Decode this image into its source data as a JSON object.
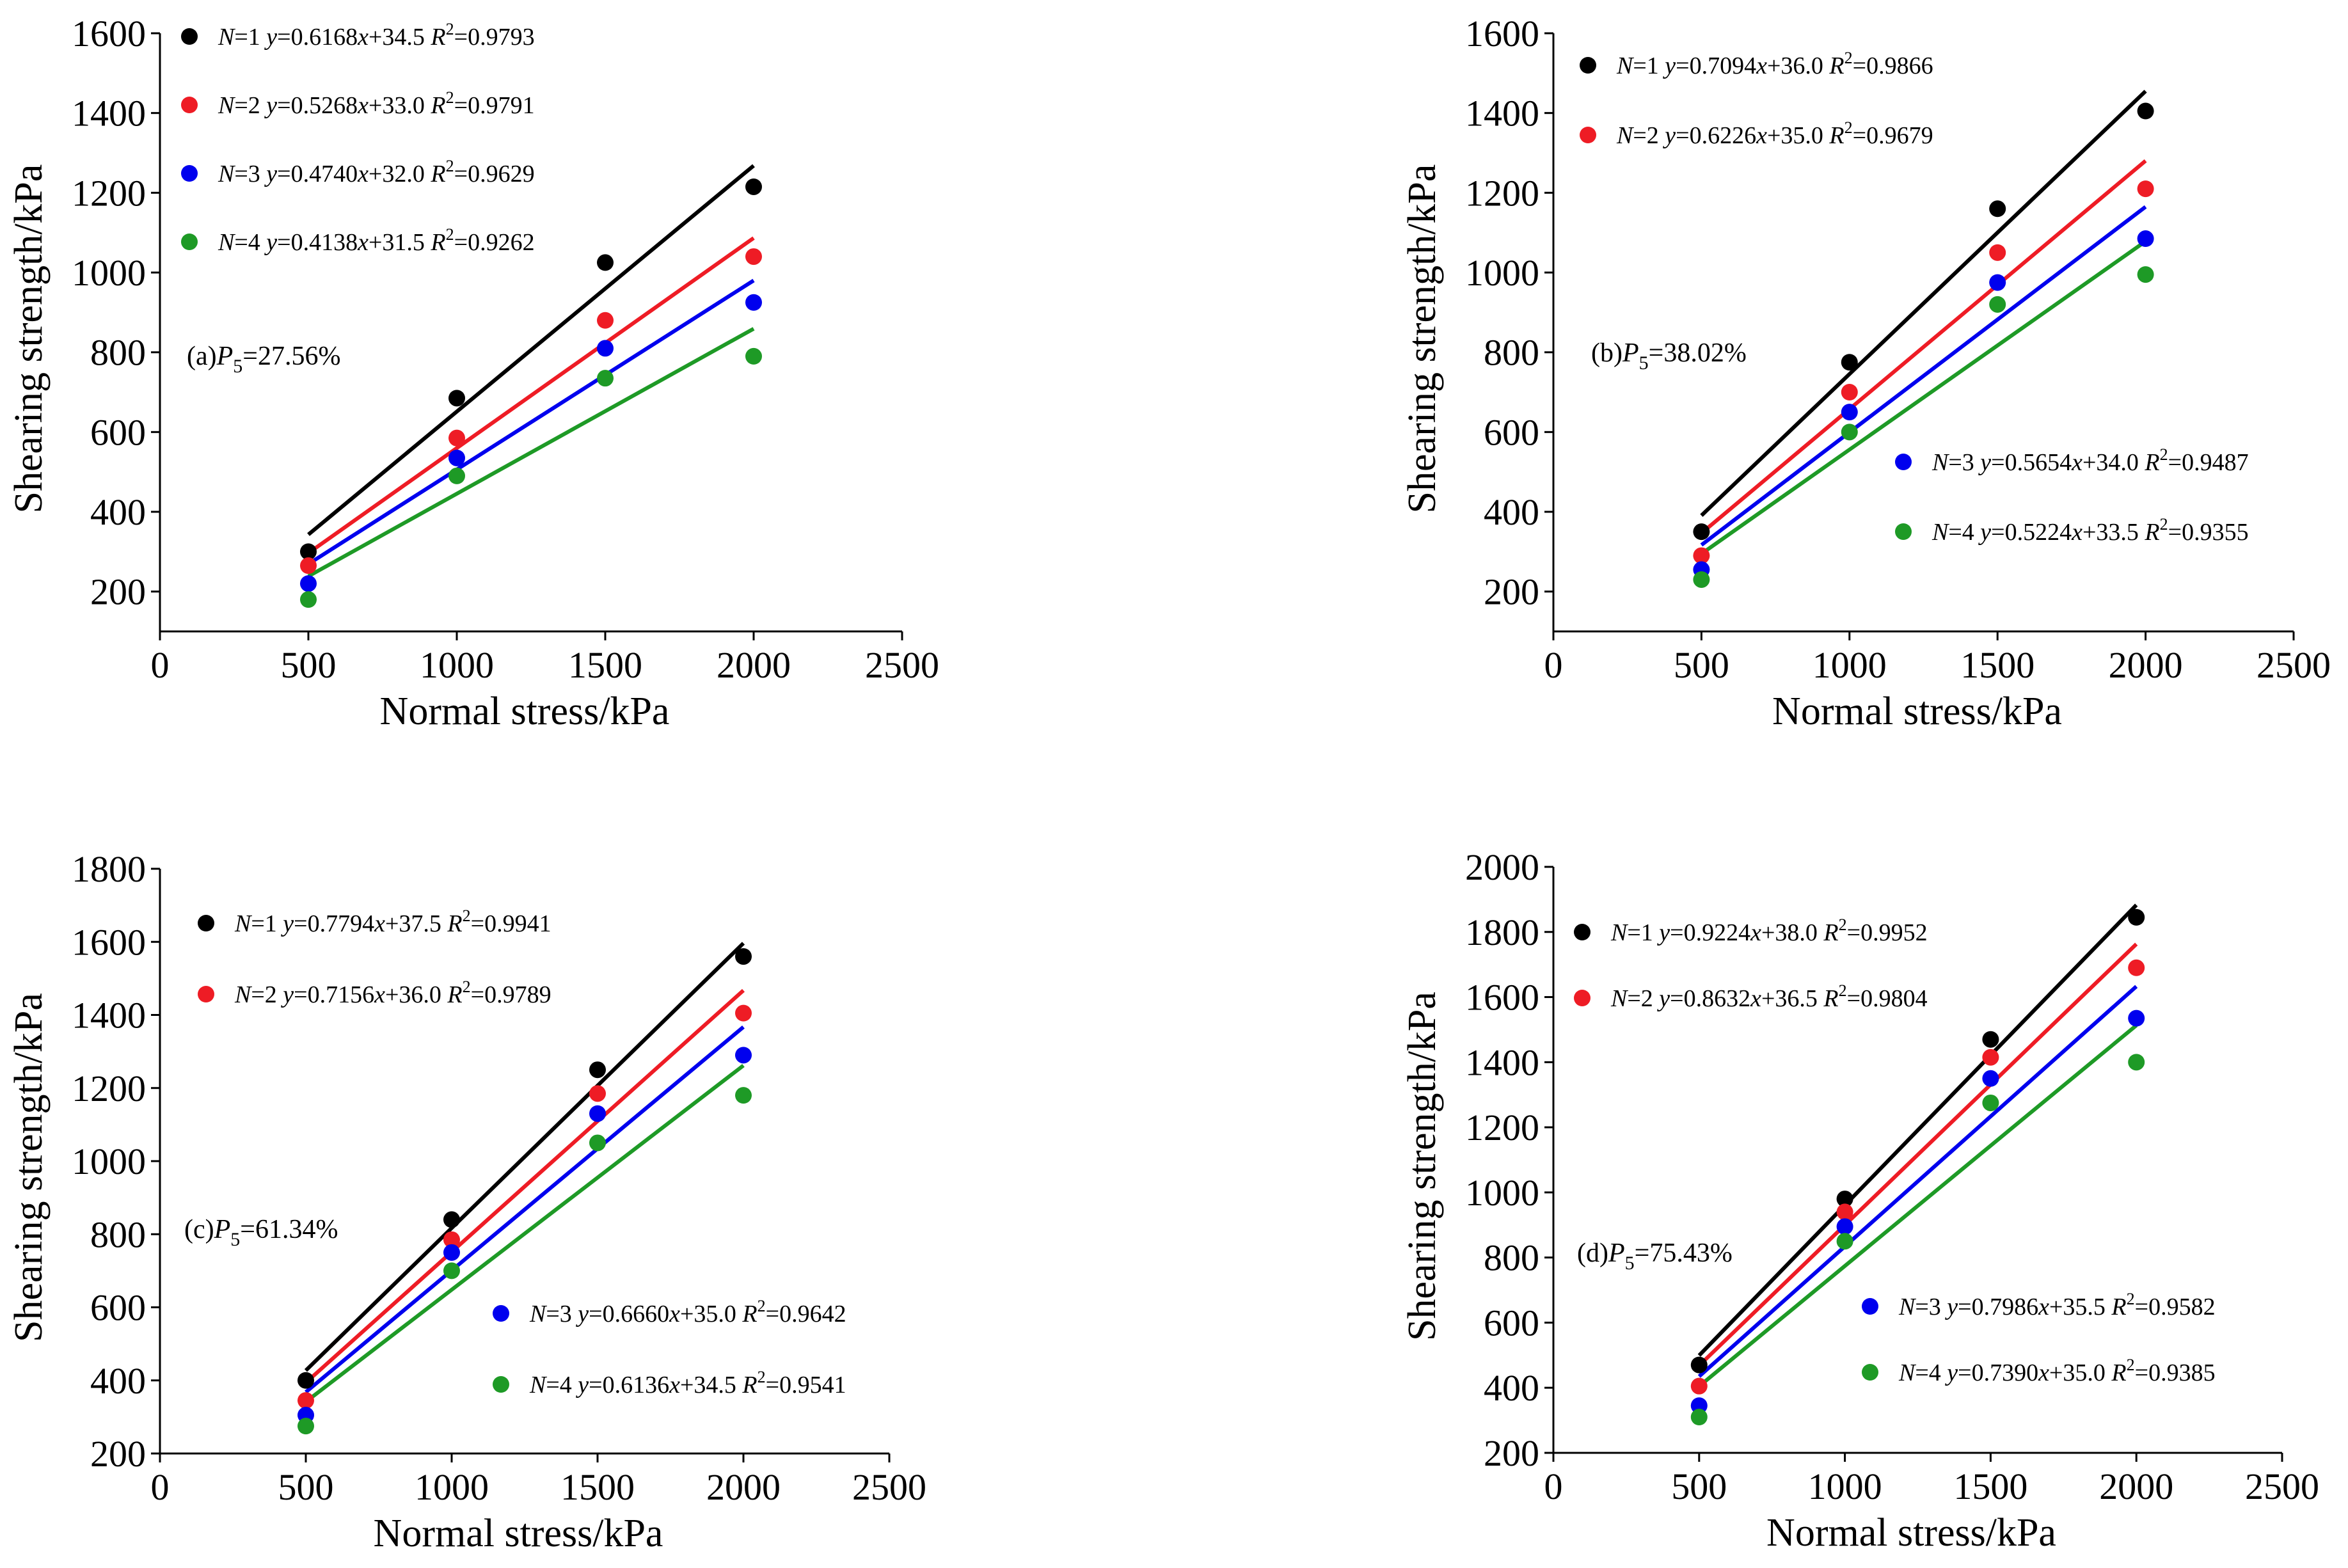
{
  "chart_data": [
    {
      "type": "scatter",
      "title": "",
      "panel_label": {
        "prefix": "(a)",
        "var": "P",
        "sub": "5",
        "value": "=27.56%"
      },
      "xlabel": "Normal stress/kPa",
      "ylabel": "Shearing strength/kPa",
      "xlim": [
        0,
        2500
      ],
      "ylim": [
        100,
        1600
      ],
      "xticks": [
        0,
        500,
        1000,
        1500,
        2000,
        2500
      ],
      "yticks": [
        200,
        400,
        600,
        800,
        1000,
        1200,
        1400,
        1600
      ],
      "x": [
        500,
        1000,
        1500,
        2000
      ],
      "legend_layout": "top-left",
      "series": [
        {
          "name": "N=1",
          "n": "1",
          "color": "#000000",
          "values": [
            300,
            685,
            1025,
            1215
          ],
          "fit": {
            "slope": 0.6168,
            "intercept": 34.5,
            "r2": 0.9793
          },
          "eq": "0.6168",
          "eq_icpt": "+34.5",
          "r2_text": "=0.9793"
        },
        {
          "name": "N=2",
          "n": "2",
          "color": "#ee1c25",
          "values": [
            265,
            585,
            880,
            1040
          ],
          "fit": {
            "slope": 0.5268,
            "intercept": 33.0,
            "r2": 0.9791
          },
          "eq": "0.5268",
          "eq_icpt": "+33.0",
          "r2_text": "=0.9791"
        },
        {
          "name": "N=3",
          "n": "3",
          "color": "#0000ee",
          "values": [
            220,
            535,
            810,
            925
          ],
          "fit": {
            "slope": 0.474,
            "intercept": 32.0,
            "r2": 0.9629
          },
          "eq": "0.4740",
          "eq_icpt": "+32.0",
          "r2_text": "=0.9629"
        },
        {
          "name": "N=4",
          "n": "4",
          "color": "#1e9a26",
          "values": [
            180,
            490,
            735,
            790
          ],
          "fit": {
            "slope": 0.4138,
            "intercept": 31.5,
            "r2": 0.9262
          },
          "eq": "0.4138",
          "eq_icpt": "+31.5",
          "r2_text": "=0.9262"
        }
      ]
    },
    {
      "type": "scatter",
      "title": "",
      "panel_label": {
        "prefix": "(b)",
        "var": "P",
        "sub": "5",
        "value": "=38.02%"
      },
      "xlabel": "Normal stress/kPa",
      "ylabel": "Shearing strength/kPa",
      "xlim": [
        0,
        2500
      ],
      "ylim": [
        100,
        1600
      ],
      "xticks": [
        0,
        500,
        1000,
        1500,
        2000,
        2500
      ],
      "yticks": [
        200,
        400,
        600,
        800,
        1000,
        1200,
        1400,
        1600
      ],
      "x": [
        500,
        1000,
        1500,
        2000
      ],
      "legend_layout": "split",
      "series": [
        {
          "name": "N=1",
          "n": "1",
          "color": "#000000",
          "values": [
            350,
            775,
            1160,
            1405
          ],
          "fit": {
            "slope": 0.7094,
            "intercept": 36.0,
            "r2": 0.9866
          },
          "eq": "0.7094",
          "eq_icpt": "+36.0",
          "r2_text": "=0.9866"
        },
        {
          "name": "N=2",
          "n": "2",
          "color": "#ee1c25",
          "values": [
            290,
            700,
            1050,
            1210
          ],
          "fit": {
            "slope": 0.6226,
            "intercept": 35.0,
            "r2": 0.9679
          },
          "eq": "0.6226",
          "eq_icpt": "+35.0",
          "r2_text": "=0.9679"
        },
        {
          "name": "N=3",
          "n": "3",
          "color": "#0000ee",
          "values": [
            255,
            650,
            975,
            1085
          ],
          "fit": {
            "slope": 0.5654,
            "intercept": 34.0,
            "r2": 0.9487
          },
          "eq": "0.5654",
          "eq_icpt": "+34.0",
          "r2_text": "=0.9487"
        },
        {
          "name": "N=4",
          "n": "4",
          "color": "#1e9a26",
          "values": [
            230,
            600,
            920,
            995
          ],
          "fit": {
            "slope": 0.5224,
            "intercept": 33.5,
            "r2": 0.9355
          },
          "eq": "0.5224",
          "eq_icpt": "+33.5",
          "r2_text": "=0.9355"
        }
      ]
    },
    {
      "type": "scatter",
      "title": "",
      "panel_label": {
        "prefix": "(c)",
        "var": "P",
        "sub": "5",
        "value": "=61.34%"
      },
      "xlabel": "Normal stress/kPa",
      "ylabel": "Shearing strength/kPa",
      "xlim": [
        0,
        2500
      ],
      "ylim": [
        200,
        1800
      ],
      "xticks": [
        0,
        500,
        1000,
        1500,
        2000,
        2500
      ],
      "yticks": [
        200,
        400,
        600,
        800,
        1000,
        1200,
        1400,
        1600,
        1800
      ],
      "x": [
        500,
        1000,
        1500,
        2000
      ],
      "legend_layout": "split",
      "series": [
        {
          "name": "N=1",
          "n": "1",
          "color": "#000000",
          "values": [
            400,
            840,
            1250,
            1560
          ],
          "fit": {
            "slope": 0.7794,
            "intercept": 37.5,
            "r2": 0.9941
          },
          "eq": "0.7794",
          "eq_icpt": "+37.5",
          "r2_text": "=0.9941"
        },
        {
          "name": "N=2",
          "n": "2",
          "color": "#ee1c25",
          "values": [
            345,
            785,
            1185,
            1405
          ],
          "fit": {
            "slope": 0.7156,
            "intercept": 36.0,
            "r2": 0.9789
          },
          "eq": "0.7156",
          "eq_icpt": "+36.0",
          "r2_text": "=0.9789"
        },
        {
          "name": "N=3",
          "n": "3",
          "color": "#0000ee",
          "values": [
            305,
            750,
            1130,
            1290
          ],
          "fit": {
            "slope": 0.666,
            "intercept": 35.0,
            "r2": 0.9642
          },
          "eq": "0.6660",
          "eq_icpt": "+35.0",
          "r2_text": "=0.9642"
        },
        {
          "name": "N=4",
          "n": "4",
          "color": "#1e9a26",
          "values": [
            275,
            700,
            1050,
            1180
          ],
          "fit": {
            "slope": 0.6136,
            "intercept": 34.5,
            "r2": 0.9541
          },
          "eq": "0.6136",
          "eq_icpt": "+34.5",
          "r2_text": "=0.9541"
        }
      ]
    },
    {
      "type": "scatter",
      "title": "",
      "panel_label": {
        "prefix": "(d)",
        "var": "P",
        "sub": "5",
        "value": "=75.43%"
      },
      "xlabel": "Normal stress/kPa",
      "ylabel": "Shearing strength/kPa",
      "xlim": [
        0,
        2500
      ],
      "ylim": [
        200,
        2000
      ],
      "xticks": [
        0,
        500,
        1000,
        1500,
        2000,
        2500
      ],
      "yticks": [
        200,
        400,
        600,
        800,
        1000,
        1200,
        1400,
        1600,
        1800,
        2000
      ],
      "x": [
        500,
        1000,
        1500,
        2000
      ],
      "legend_layout": "split",
      "series": [
        {
          "name": "N=1",
          "n": "1",
          "color": "#000000",
          "values": [
            470,
            980,
            1470,
            1845
          ],
          "fit": {
            "slope": 0.9224,
            "intercept": 38.0,
            "r2": 0.9952
          },
          "eq": "0.9224",
          "eq_icpt": "+38.0",
          "r2_text": "=0.9952"
        },
        {
          "name": "N=2",
          "n": "2",
          "color": "#ee1c25",
          "values": [
            405,
            940,
            1415,
            1690
          ],
          "fit": {
            "slope": 0.8632,
            "intercept": 36.5,
            "r2": 0.9804
          },
          "eq": "0.8632",
          "eq_icpt": "+36.5",
          "r2_text": "=0.9804"
        },
        {
          "name": "N=3",
          "n": "3",
          "color": "#0000ee",
          "values": [
            345,
            895,
            1350,
            1535
          ],
          "fit": {
            "slope": 0.7986,
            "intercept": 35.5,
            "r2": 0.9582
          },
          "eq": "0.7986",
          "eq_icpt": "+35.5",
          "r2_text": "=0.9582"
        },
        {
          "name": "N=4",
          "n": "4",
          "color": "#1e9a26",
          "values": [
            310,
            850,
            1275,
            1400
          ],
          "fit": {
            "slope": 0.739,
            "intercept": 35.0,
            "r2": 0.9385
          },
          "eq": "0.7390",
          "eq_icpt": "+35.0",
          "r2_text": "=0.9385"
        }
      ]
    }
  ]
}
